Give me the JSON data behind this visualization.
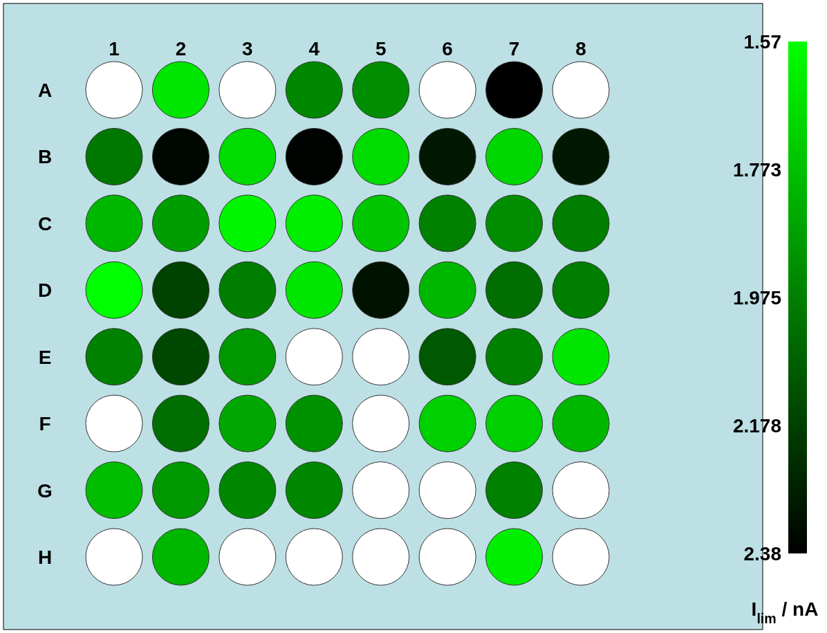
{
  "chart_data": {
    "type": "heatmap",
    "categories": [
      "1",
      "2",
      "3",
      "4",
      "5",
      "6",
      "7",
      "8"
    ],
    "y_categories": [
      "A",
      "B",
      "C",
      "D",
      "E",
      "F",
      "G",
      "H"
    ],
    "cells": [
      [
        null,
        1.65,
        null,
        1.95,
        1.93,
        null,
        2.38,
        null
      ],
      [
        2.0,
        2.36,
        1.68,
        2.37,
        1.68,
        2.3,
        1.7,
        2.3
      ],
      [
        1.8,
        1.88,
        1.6,
        1.62,
        1.75,
        1.97,
        1.93,
        1.98
      ],
      [
        1.57,
        2.17,
        1.98,
        1.65,
        2.32,
        1.8,
        2.03,
        1.98
      ],
      [
        1.97,
        2.15,
        1.9,
        null,
        null,
        2.1,
        1.97,
        1.65
      ],
      [
        null,
        2.03,
        1.85,
        1.92,
        null,
        1.72,
        1.72,
        1.8
      ],
      [
        1.78,
        1.9,
        1.95,
        1.95,
        null,
        null,
        1.97,
        null
      ],
      [
        null,
        1.8,
        null,
        null,
        null,
        null,
        1.62,
        null
      ]
    ],
    "clim": [
      1.57,
      2.38
    ],
    "cticks": [
      1.57,
      1.773,
      1.975,
      2.178,
      2.38
    ],
    "clabel": "I$_{lim}$ / nA"
  }
}
